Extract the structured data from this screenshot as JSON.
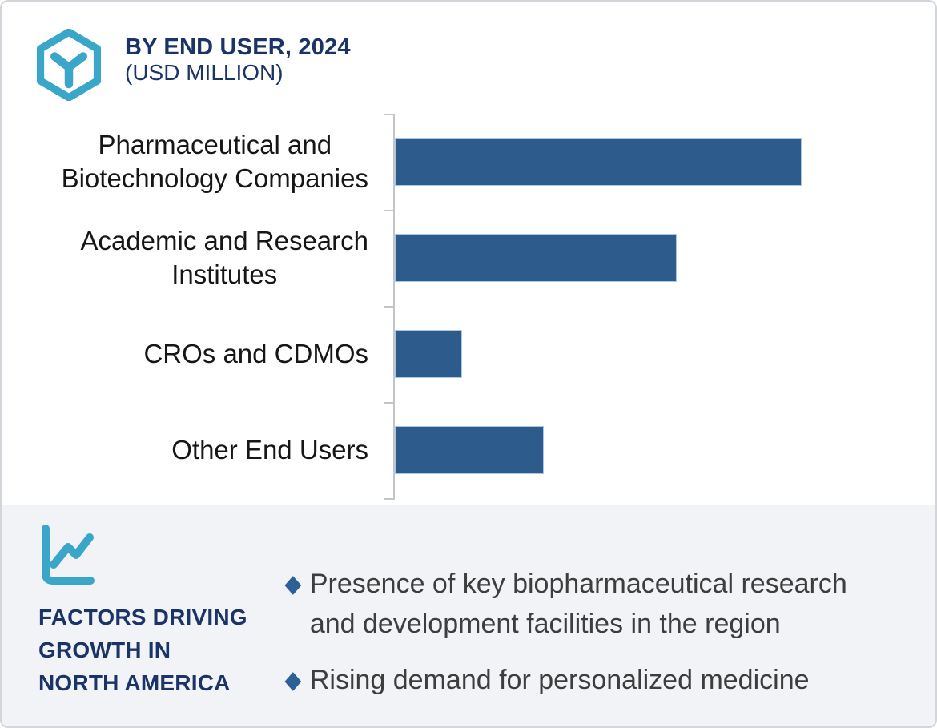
{
  "header": {
    "title": "BY END USER, 2024",
    "subtitle": "(USD MILLION)",
    "icon": "hexagon-y-icon"
  },
  "chart_data": {
    "type": "bar",
    "orientation": "horizontal",
    "title": "BY END USER, 2024",
    "subtitle": "(USD MILLION)",
    "unit": "USD Million",
    "categories": [
      "Pharmaceutical and Biotechnology Companies",
      "Academic and Research Institutes",
      "CROs and CDMOs",
      "Other End Users"
    ],
    "display_labels": [
      "Pharmaceutical and\nBiotechnology Companies",
      "Academic and Research\nInstitutes",
      "CROs and CDMOs",
      "Other End Users"
    ],
    "values_relative_pct": [
      100,
      69.3,
      16.5,
      36.6
    ],
    "values_note": "No numeric axis, gridlines or data labels are shown; values are relative bar lengths as percent of the longest bar",
    "bar_color": "#2d5c8c",
    "bar_border_color": "#a9c6e3",
    "axis_color": "#c4c5c9",
    "grid": false,
    "legend": false
  },
  "factors_panel": {
    "icon": "line-chart-icon",
    "heading": "FACTORS DRIVING\nGROWTH IN\nNORTH AMERICA",
    "bullet_marker": "◆",
    "bullets": [
      "Presence of key biopharmaceutical research\nand development facilities in the region",
      "Rising demand for personalized medicine"
    ]
  },
  "colors": {
    "navy": "#1b3467",
    "teal": "#3aa6c9",
    "steel_blue": "#2d5c8c",
    "bullet_diamond": "#2d6096",
    "panel_background": "#f1f3f7",
    "frame_border": "#d3d5db"
  }
}
